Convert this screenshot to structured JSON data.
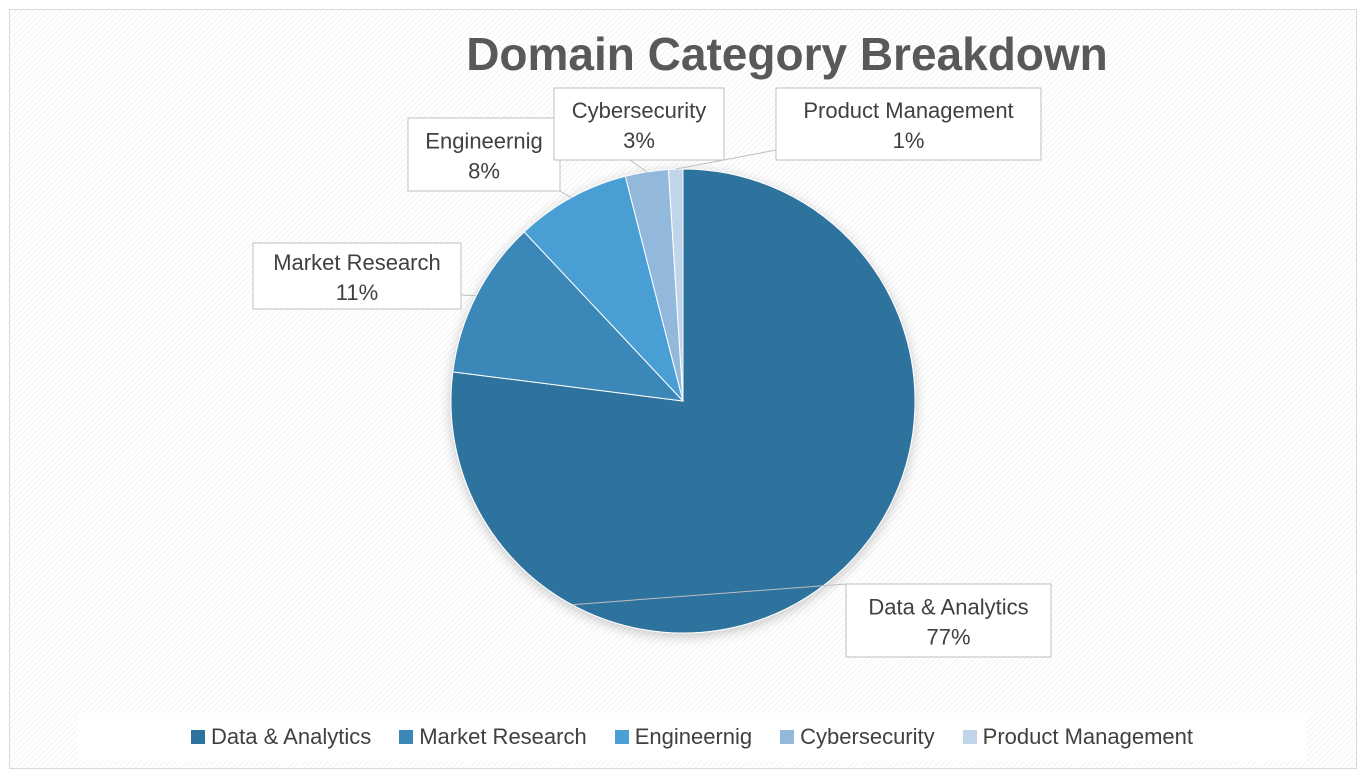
{
  "chart_data": {
    "type": "pie",
    "title": "Domain Category Breakdown",
    "categories": [
      "Data & Analytics",
      "Market Research",
      "Engineernig",
      "Cybersecurity",
      "Product Management"
    ],
    "values": [
      77,
      11,
      8,
      3,
      1
    ],
    "value_labels": [
      "77%",
      "11%",
      "8%",
      "3%",
      "1%"
    ],
    "colors": [
      "#2e729e",
      "#3a87b8",
      "#4a9fd3",
      "#92b9db",
      "#c1d5ea"
    ],
    "legend_position": "bottom",
    "grid": false
  }
}
